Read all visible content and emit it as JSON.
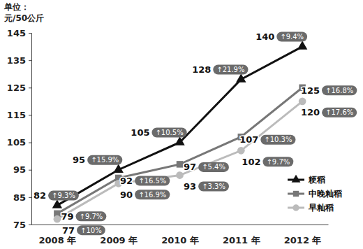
{
  "chart_data": {
    "type": "line",
    "y_label": [
      "单位：",
      "元/50公斤"
    ],
    "categories": [
      "2008 年",
      "2009 年",
      "2010 年",
      "2011 年",
      "2012 年"
    ],
    "series": [
      {
        "name": "粳稻",
        "color": "#111111",
        "marker": "triangle",
        "values": [
          82,
          95,
          105,
          128,
          140
        ],
        "growth": [
          9.3,
          15.9,
          10.5,
          21.9,
          9.4
        ],
        "growth_labels": [
          "↑9.3%",
          "↑15.9%",
          "↑10.5%",
          "↑21.9%",
          "↑9.4%"
        ]
      },
      {
        "name": "中晚籼稻",
        "color": "#777777",
        "marker": "square",
        "values": [
          79,
          92,
          97,
          107,
          125
        ],
        "growth": [
          9.7,
          16.5,
          5.4,
          10.3,
          16.8
        ],
        "growth_labels": [
          "↑9.7%",
          "↑16.5%",
          "↑5.4%",
          "↑10.3%",
          "↑16.8%"
        ]
      },
      {
        "name": "早籼稻",
        "color": "#bbbbbb",
        "marker": "circle",
        "values": [
          77,
          90,
          93,
          102,
          120
        ],
        "growth": [
          10,
          16.9,
          3.3,
          9.7,
          17.6
        ],
        "growth_labels": [
          "↑10%",
          "↑16.9%",
          "↑3.3%",
          "↑9.7%",
          "↑17.6%"
        ]
      }
    ],
    "ylim": [
      75,
      145
    ],
    "yticks": [
      75,
      85,
      95,
      105,
      115,
      125,
      135,
      145
    ],
    "grid": false,
    "legend": "lower right",
    "data_labels": true
  }
}
